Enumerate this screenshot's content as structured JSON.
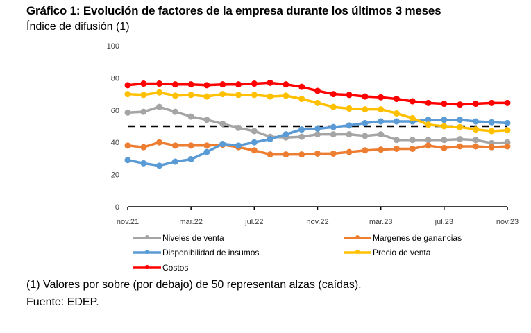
{
  "header": {
    "title": "Gráfico 1: Evolución de factores de la empresa durante los últimos 3 meses",
    "subtitle": "Índice de difusión (1)"
  },
  "footer": {
    "note": "(1) Valores por sobre (por debajo) de 50 representan alzas (caídas).",
    "source": "Fuente: EDEP."
  },
  "chart_data": {
    "type": "line",
    "title": "Gráfico 1: Evolución de factores de la empresa durante los últimos 3 meses",
    "ylabel": "Índice de difusión (1)",
    "xlabel": "",
    "ylim": [
      0,
      100
    ],
    "yticks": [
      0,
      20,
      40,
      60,
      80,
      100
    ],
    "x_tick_labels": [
      "nov.21",
      "mar.22",
      "jul.22",
      "nov.22",
      "mar.23",
      "jul.23",
      "nov.23"
    ],
    "x_tick_every": 4,
    "x": [
      "nov.21",
      "dic.21",
      "ene.22",
      "feb.22",
      "mar.22",
      "abr.22",
      "may.22",
      "jun.22",
      "jul.22",
      "ago.22",
      "sep.22",
      "oct.22",
      "nov.22",
      "dic.22",
      "ene.23",
      "feb.23",
      "mar.23",
      "abr.23",
      "may.23",
      "jun.23",
      "jul.23",
      "ago.23",
      "sep.23",
      "oct.23",
      "nov.23"
    ],
    "reference_line": {
      "value": 50,
      "style": "dashed",
      "color": "#000000"
    },
    "grid": false,
    "legend_position": "bottom",
    "series": [
      {
        "name": "Niveles de venta",
        "color": "#A5A5A5",
        "values": [
          58.5,
          59,
          62,
          59,
          56,
          54,
          51.5,
          49,
          47,
          43.5,
          43,
          43.5,
          45,
          45,
          45,
          44,
          45,
          41.5,
          41.5,
          41.5,
          41.5,
          42,
          41.5,
          39.5,
          40
        ]
      },
      {
        "name": "Margenes de ganancias",
        "color": "#ED7D31",
        "values": [
          38,
          37,
          40,
          38,
          38,
          38,
          38.5,
          37,
          35,
          32.5,
          32.5,
          32.5,
          33,
          33,
          34,
          35,
          35.5,
          36,
          36,
          38,
          36.5,
          37.5,
          37.5,
          37,
          37.5
        ]
      },
      {
        "name": "Disponibilidad de insumos",
        "color": "#5B9BD5",
        "values": [
          29,
          27,
          25.5,
          28,
          29.5,
          34,
          39,
          38,
          40,
          42,
          45,
          48,
          48.5,
          49.5,
          50.5,
          52,
          53,
          53,
          53,
          54,
          54,
          54,
          53,
          52.5,
          52
        ]
      },
      {
        "name": "Precio de venta",
        "color": "#FFC000",
        "values": [
          70,
          69.5,
          71,
          69,
          69.5,
          68.5,
          70,
          69.5,
          69.5,
          68.5,
          69,
          67,
          64.5,
          62,
          61,
          60.5,
          60.5,
          58,
          55,
          51,
          50,
          49.5,
          48,
          47,
          47.5
        ]
      },
      {
        "name": "Costos",
        "color": "#FF0000",
        "values": [
          75.5,
          76.5,
          76.5,
          76,
          76,
          75.5,
          76,
          76,
          76.5,
          77,
          76,
          74.5,
          72,
          70,
          69.5,
          68.5,
          68,
          67,
          65.5,
          64.5,
          64,
          63.5,
          64,
          64.5,
          64.5
        ]
      }
    ]
  }
}
